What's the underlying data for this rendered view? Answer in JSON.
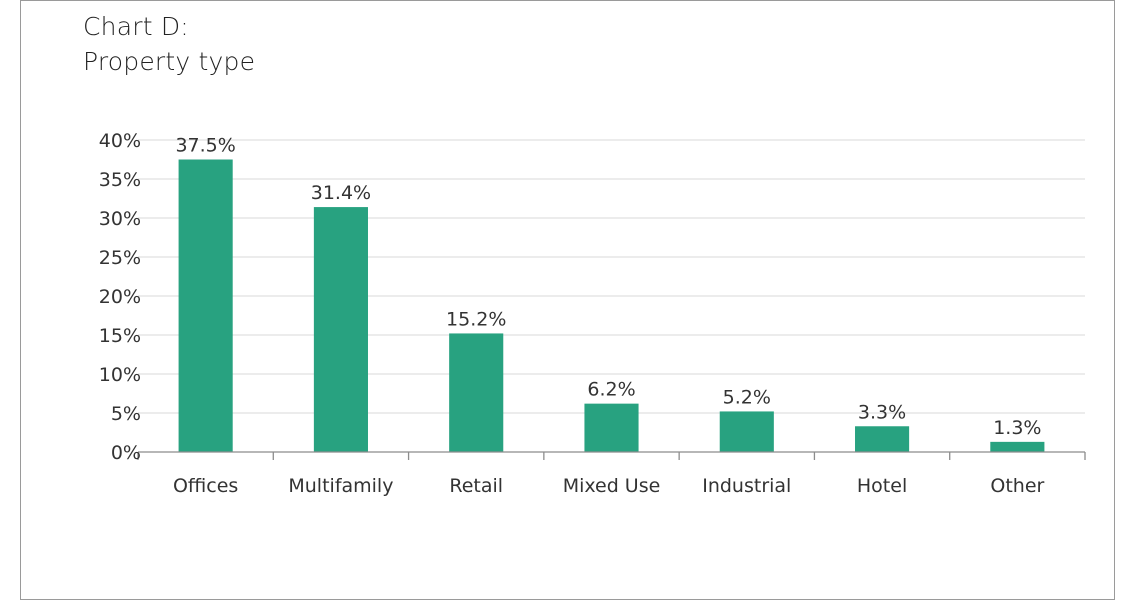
{
  "chart_data": {
    "type": "bar",
    "title": [
      "Chart D:",
      "Property type"
    ],
    "categories": [
      "Offices",
      "Multifamily",
      "Retail",
      "Mixed Use",
      "Industrial",
      "Hotel",
      "Other"
    ],
    "values": [
      37.5,
      31.4,
      15.2,
      6.2,
      5.2,
      3.3,
      1.3
    ],
    "data_labels": [
      "37.5%",
      "31.4%",
      "15.2%",
      "6.2%",
      "5.2%",
      "3.3%",
      "1.3%"
    ],
    "y_ticks": [
      0,
      5,
      10,
      15,
      20,
      25,
      30,
      35,
      40
    ],
    "y_tick_labels": [
      "0%",
      "5%",
      "10%",
      "15%",
      "20%",
      "25%",
      "30%",
      "35%",
      "40%"
    ],
    "ylim": [
      0,
      40
    ],
    "xlabel": "",
    "ylabel": "",
    "grid": true,
    "legend": "none",
    "bar_color": "#28a280",
    "grid_color": "#d9d9d9",
    "axis_color": "#8c8c8c"
  }
}
